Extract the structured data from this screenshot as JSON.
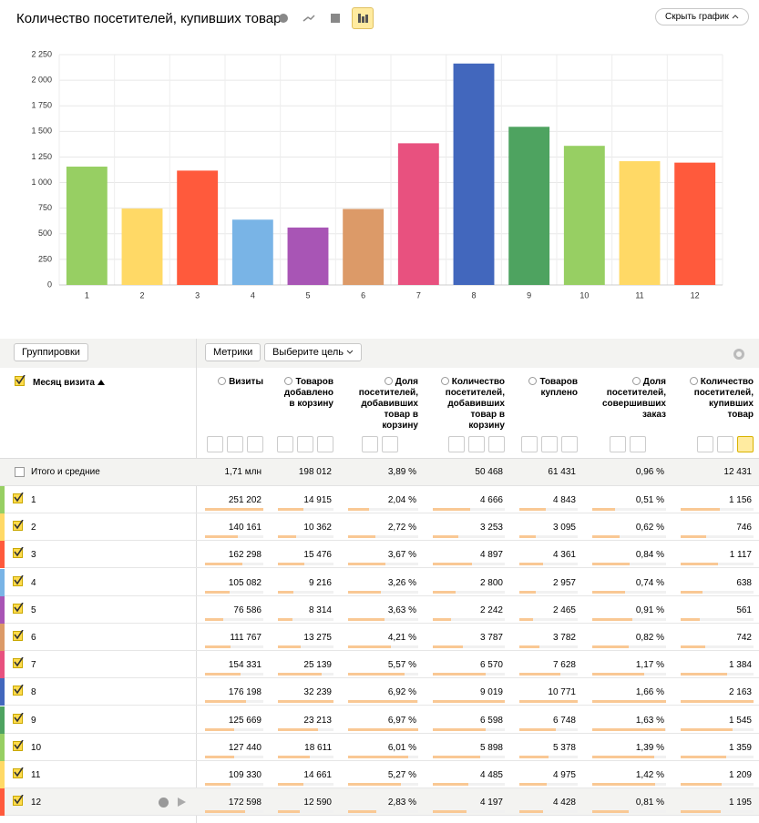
{
  "header": {
    "title": "Количество посетителей, купивших товар",
    "hide_chart": "Скрыть график"
  },
  "chart_data": {
    "type": "bar",
    "categories": [
      "1",
      "2",
      "3",
      "4",
      "5",
      "6",
      "7",
      "8",
      "9",
      "10",
      "11",
      "12"
    ],
    "values": [
      1156,
      746,
      1117,
      638,
      561,
      742,
      1384,
      2163,
      1545,
      1359,
      1209,
      1195
    ],
    "colors": [
      "#97cf63",
      "#ffd966",
      "#ff5a3c",
      "#79b4e6",
      "#a855b5",
      "#dc9a68",
      "#e8517f",
      "#4267bd",
      "#4ea360",
      "#97cf63",
      "#ffd966",
      "#ff5a3c"
    ],
    "ylim": [
      0,
      2250
    ],
    "yticks": [
      0,
      250,
      500,
      750,
      {
        "value": 1000,
        "label": "1 000"
      },
      {
        "value": 1250,
        "label": "1 250"
      },
      {
        "value": 1500,
        "label": "1 500"
      },
      {
        "value": 1750,
        "label": "1 750"
      },
      {
        "value": 2000,
        "label": "2 000"
      },
      {
        "value": 2250,
        "label": "2 250"
      }
    ],
    "grid": true
  },
  "toolbar": {
    "groupings": "Группировки",
    "metrics": "Метрики",
    "goal": "Выберите цель"
  },
  "table": {
    "dimension": "Месяц визита",
    "columns": [
      "Визиты",
      "Товаров добавлено в корзину",
      "Доля посетителей, добавивших товар в корзину",
      "Количество посетителей, добавивших товар в корзину",
      "Товаров куплено",
      "Доля посетителей, совершивших заказ",
      "Количество посетителей, купивших товар"
    ],
    "total": {
      "label": "Итого и средние",
      "values": [
        1710000,
        198012,
        3.89,
        50468,
        61431,
        0.96,
        12431
      ],
      "value_labels": [
        "1,71 млн",
        "198 012",
        "3,89 %",
        "50 468",
        "61 431",
        "0,96 %",
        "12 431"
      ]
    },
    "rows": [
      {
        "label": "1",
        "values": [
          251202,
          14915,
          2.04,
          4666,
          4843,
          0.51,
          1156
        ],
        "value_labels": [
          "251 202",
          "14 915",
          "2,04 %",
          "4 666",
          "4 843",
          "0,51 %",
          "1 156"
        ]
      },
      {
        "label": "2",
        "values": [
          140161,
          10362,
          2.72,
          3253,
          3095,
          0.62,
          746
        ],
        "value_labels": [
          "140 161",
          "10 362",
          "2,72 %",
          "3 253",
          "3 095",
          "0,62 %",
          "746"
        ]
      },
      {
        "label": "3",
        "values": [
          162298,
          15476,
          3.67,
          4897,
          4361,
          0.84,
          1117
        ],
        "value_labels": [
          "162 298",
          "15 476",
          "3,67 %",
          "4 897",
          "4 361",
          "0,84 %",
          "1 117"
        ]
      },
      {
        "label": "4",
        "values": [
          105082,
          9216,
          3.26,
          2800,
          2957,
          0.74,
          638
        ],
        "value_labels": [
          "105 082",
          "9 216",
          "3,26 %",
          "2 800",
          "2 957",
          "0,74 %",
          "638"
        ]
      },
      {
        "label": "5",
        "values": [
          76586,
          8314,
          3.63,
          2242,
          2465,
          0.91,
          561
        ],
        "value_labels": [
          "76 586",
          "8 314",
          "3,63 %",
          "2 242",
          "2 465",
          "0,91 %",
          "561"
        ]
      },
      {
        "label": "6",
        "values": [
          111767,
          13275,
          4.21,
          3787,
          3782,
          0.82,
          742
        ],
        "value_labels": [
          "111 767",
          "13 275",
          "4,21 %",
          "3 787",
          "3 782",
          "0,82 %",
          "742"
        ]
      },
      {
        "label": "7",
        "values": [
          154331,
          25139,
          5.57,
          6570,
          7628,
          1.17,
          1384
        ],
        "value_labels": [
          "154 331",
          "25 139",
          "5,57 %",
          "6 570",
          "7 628",
          "1,17 %",
          "1 384"
        ]
      },
      {
        "label": "8",
        "values": [
          176198,
          32239,
          6.92,
          9019,
          10771,
          1.66,
          2163
        ],
        "value_labels": [
          "176 198",
          "32 239",
          "6,92 %",
          "9 019",
          "10 771",
          "1,66 %",
          "2 163"
        ]
      },
      {
        "label": "9",
        "values": [
          125669,
          23213,
          6.97,
          6598,
          6748,
          1.63,
          1545
        ],
        "value_labels": [
          "125 669",
          "23 213",
          "6,97 %",
          "6 598",
          "6 748",
          "1,63 %",
          "1 545"
        ]
      },
      {
        "label": "10",
        "values": [
          127440,
          18611,
          6.01,
          5898,
          5378,
          1.39,
          1359
        ],
        "value_labels": [
          "127 440",
          "18 611",
          "6,01 %",
          "5 898",
          "5 378",
          "1,39 %",
          "1 359"
        ]
      },
      {
        "label": "11",
        "values": [
          109330,
          14661,
          5.27,
          4485,
          4975,
          1.42,
          1209
        ],
        "value_labels": [
          "109 330",
          "14 661",
          "5,27 %",
          "4 485",
          "4 975",
          "1,42 %",
          "1 209"
        ]
      },
      {
        "label": "12",
        "values": [
          172598,
          12590,
          2.83,
          4197,
          4428,
          0.81,
          1195
        ],
        "value_labels": [
          "172 598",
          "12 590",
          "2,83 %",
          "4 197",
          "4 428",
          "0,81 %",
          "1 195"
        ]
      }
    ]
  }
}
